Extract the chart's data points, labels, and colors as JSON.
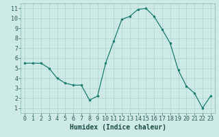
{
  "x": [
    0,
    1,
    2,
    3,
    4,
    5,
    6,
    7,
    8,
    9,
    10,
    11,
    12,
    13,
    14,
    15,
    16,
    17,
    18,
    19,
    20,
    21,
    22,
    23
  ],
  "y": [
    5.5,
    5.5,
    5.5,
    5.0,
    4.0,
    3.5,
    3.3,
    3.3,
    1.8,
    2.2,
    5.5,
    7.7,
    9.9,
    10.2,
    10.9,
    11.0,
    10.2,
    8.9,
    7.5,
    4.8,
    3.2,
    2.5,
    1.0,
    2.2
  ],
  "line_color": "#1a7a6e",
  "marker_color": "#1a7a6e",
  "bg_color": "#ceeae6",
  "grid_color": "#aed4cf",
  "xlabel": "Humidex (Indice chaleur)",
  "xlabel_fontsize": 7,
  "tick_fontsize": 6,
  "ylim": [
    0.5,
    11.5
  ],
  "xlim": [
    -0.5,
    23.5
  ],
  "yticks": [
    1,
    2,
    3,
    4,
    5,
    6,
    7,
    8,
    9,
    10,
    11
  ],
  "xticks": [
    0,
    1,
    2,
    3,
    4,
    5,
    6,
    7,
    8,
    9,
    10,
    11,
    12,
    13,
    14,
    15,
    16,
    17,
    18,
    19,
    20,
    21,
    22,
    23
  ]
}
